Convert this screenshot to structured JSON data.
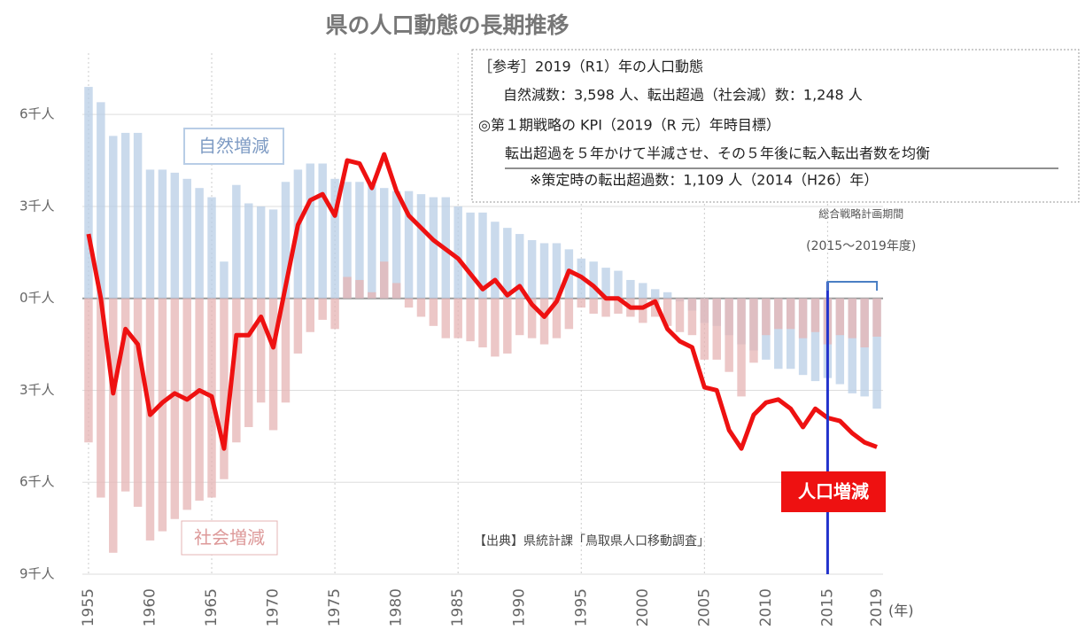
{
  "chart_data": {
    "type": "bar_line",
    "title": "県の人口動態の長期推移",
    "x": [
      1955,
      1956,
      1957,
      1958,
      1959,
      1960,
      1961,
      1962,
      1963,
      1964,
      1965,
      1966,
      1967,
      1968,
      1969,
      1970,
      1971,
      1972,
      1973,
      1974,
      1975,
      1976,
      1977,
      1978,
      1979,
      1980,
      1981,
      1982,
      1983,
      1984,
      1985,
      1986,
      1987,
      1988,
      1989,
      1990,
      1991,
      1992,
      1993,
      1994,
      1995,
      1996,
      1997,
      1998,
      1999,
      2000,
      2001,
      2002,
      2003,
      2004,
      2005,
      2006,
      2007,
      2008,
      2009,
      2010,
      2011,
      2012,
      2013,
      2014,
      2015,
      2016,
      2017,
      2018,
      2019
    ],
    "xlim": [
      1954.5,
      2019.5
    ],
    "xticks": [
      1955,
      1960,
      1965,
      1970,
      1975,
      1980,
      1985,
      1990,
      1995,
      2000,
      2005,
      2010,
      2015,
      2019
    ],
    "x_unit": "(年)",
    "ylim": [
      -9,
      8
    ],
    "yticks": [
      {
        "value": 6,
        "label": "6千人"
      },
      {
        "value": 3,
        "label": "3千人"
      },
      {
        "value": 0,
        "label": "0千人"
      },
      {
        "value": -3,
        "label": "3千人"
      },
      {
        "value": -6,
        "label": "6千人"
      },
      {
        "value": -9,
        "label": "9千人"
      }
    ],
    "grid": true,
    "series": [
      {
        "name": "自然増減",
        "type": "bar",
        "color": "#b8cde6",
        "values": [
          6.9,
          6.4,
          5.3,
          5.4,
          5.4,
          4.2,
          4.2,
          4.1,
          3.9,
          3.6,
          3.3,
          1.2,
          3.7,
          3.1,
          3.0,
          2.9,
          3.8,
          4.2,
          4.4,
          4.4,
          3.9,
          3.8,
          3.8,
          3.7,
          3.6,
          3.5,
          3.5,
          3.4,
          3.3,
          3.3,
          3.0,
          2.8,
          2.8,
          2.5,
          2.3,
          2.1,
          1.9,
          1.8,
          1.8,
          1.6,
          1.3,
          1.2,
          1.0,
          0.9,
          0.6,
          0.5,
          0.3,
          0.2,
          -0.1,
          -0.4,
          -0.8,
          -0.9,
          -1.2,
          -1.5,
          -1.7,
          -2.0,
          -2.3,
          -2.3,
          -2.5,
          -2.7,
          -2.6,
          -2.8,
          -3.1,
          -3.2,
          -3.6
        ]
      },
      {
        "name": "社会増減",
        "type": "bar",
        "color": "#e6b4b4",
        "values": [
          -4.7,
          -6.5,
          -8.3,
          -6.3,
          -6.8,
          -7.9,
          -7.6,
          -7.2,
          -6.9,
          -6.6,
          -6.5,
          -5.9,
          -4.7,
          -4.2,
          -3.4,
          -4.3,
          -3.4,
          -1.8,
          -1.1,
          -0.7,
          -1.0,
          0.7,
          0.6,
          0.2,
          1.2,
          0.5,
          -0.3,
          -0.6,
          -0.9,
          -1.3,
          -1.3,
          -1.4,
          -1.6,
          -1.9,
          -1.8,
          -1.2,
          -1.3,
          -1.5,
          -1.3,
          -1.0,
          -0.3,
          -0.5,
          -0.6,
          -0.5,
          -0.6,
          -0.8,
          -0.6,
          -0.9,
          -1.1,
          -1.2,
          -2.0,
          -2.0,
          -2.4,
          -3.2,
          -2.1,
          -1.2,
          -1.0,
          -1.0,
          -1.3,
          -1.1,
          -1.5,
          -1.2,
          -1.3,
          -1.6,
          -1.25
        ]
      },
      {
        "name": "人口増減",
        "type": "line",
        "color": "#ee1111",
        "values": [
          2.1,
          0,
          -3.1,
          -1.0,
          -1.5,
          -3.8,
          -3.4,
          -3.1,
          -3.3,
          -3.0,
          -3.2,
          -4.9,
          -1.2,
          -1.2,
          -0.6,
          -1.6,
          0.4,
          2.4,
          3.2,
          3.4,
          2.7,
          4.5,
          4.4,
          3.6,
          4.7,
          3.5,
          2.7,
          2.3,
          1.9,
          1.6,
          1.3,
          0.8,
          0.3,
          0.6,
          0.1,
          0.4,
          -0.2,
          -0.6,
          -0.1,
          0.9,
          0.7,
          0.4,
          0.0,
          0.0,
          -0.3,
          -0.3,
          -0.1,
          -1.0,
          -1.4,
          -1.6,
          -2.9,
          -3.0,
          -4.3,
          -4.9,
          -3.8,
          -3.4,
          -3.3,
          -3.6,
          -4.2,
          -3.6,
          -3.9,
          -4.0,
          -4.4,
          -4.7,
          -4.85
        ]
      }
    ],
    "period": {
      "start": 2015,
      "end": 2019,
      "color": "#2233cc",
      "label": "総合戦略計画期間",
      "sublabel": "(2015～2019年度)"
    },
    "note_lines": [
      "［参考］2019（R1）年の人口動態",
      "自然減数：3,598 人、転出超過（社会減）数：1,248 人",
      "◎第１期戦略の KPI（2019（R 元）年時目標）",
      "転出超過を５年かけて半減させ、その５年後に転入転出者数を均衡",
      "※策定時の転出超過数：1,109 人（2014（H26）年）"
    ],
    "source": "【出典】県統計課「鳥取県人口移動調査」"
  }
}
